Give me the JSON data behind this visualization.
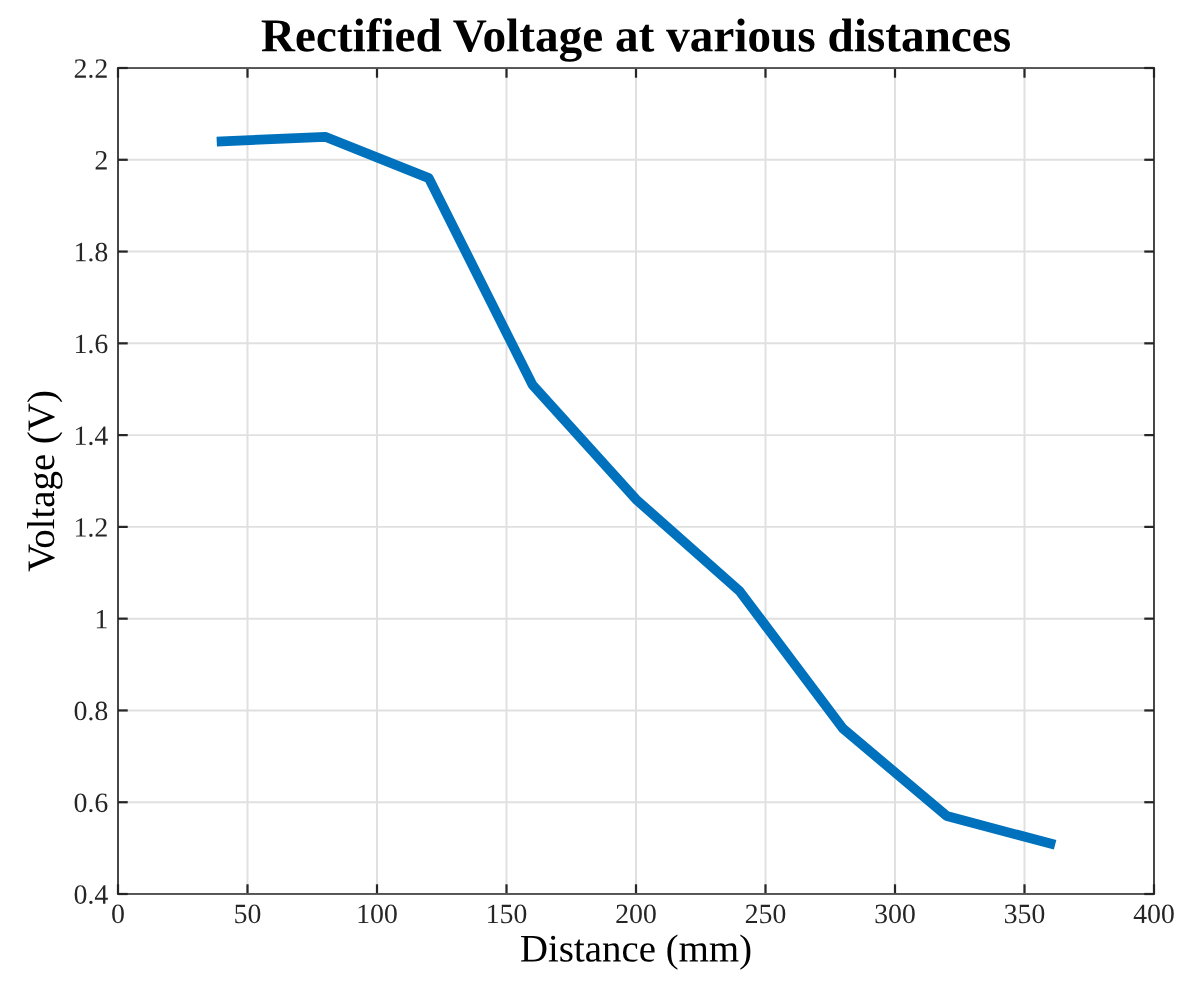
{
  "chart_data": {
    "type": "line",
    "title": "Rectified Voltage at various distances",
    "xlabel": "Distance (mm)",
    "ylabel": "Voltage (V)",
    "x": [
      40,
      80,
      120,
      160,
      200,
      240,
      280,
      320,
      360
    ],
    "series": [
      {
        "color": "#0072bd",
        "values": [
          2.04,
          2.05,
          1.96,
          1.51,
          1.26,
          1.06,
          0.76,
          0.57,
          0.51
        ]
      }
    ],
    "xlim": [
      0,
      400
    ],
    "xticks": [
      0,
      50,
      100,
      150,
      200,
      250,
      300,
      350,
      400
    ],
    "ylim": [
      0.4,
      2.2
    ],
    "yticks": [
      0.4,
      0.6,
      0.8,
      1,
      1.2,
      1.4,
      1.6,
      1.8,
      2,
      2.2
    ],
    "grid": true,
    "marker": "none",
    "line_style": "solid"
  }
}
